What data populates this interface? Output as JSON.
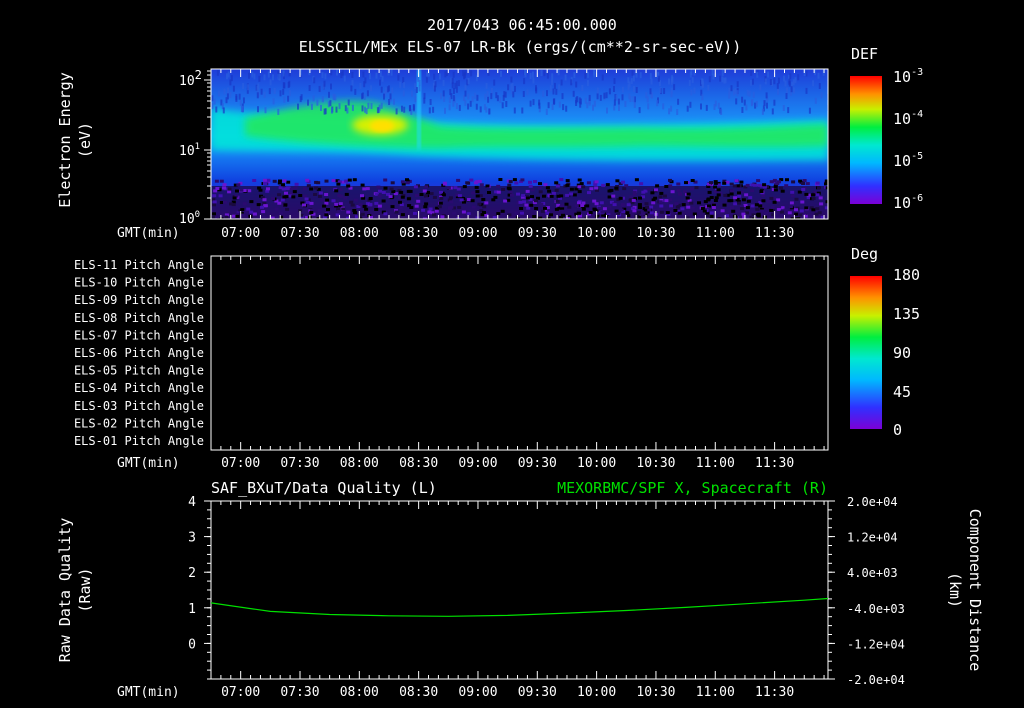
{
  "header": {
    "title": "2017/043 06:45:00.000",
    "subtitle": "ELSSCIL/MEx ELS-07 LR-Bk  (ergs/(cm**2-sr-sec-eV))"
  },
  "time_axis": {
    "label": "GMT(min)",
    "ticks": [
      "07:00",
      "07:30",
      "08:00",
      "08:30",
      "09:00",
      "09:30",
      "10:00",
      "10:30",
      "11:00",
      "11:30"
    ]
  },
  "colors": {
    "background": "#000000",
    "axes": "#ffffff",
    "line_series": "#00e000"
  },
  "chart_data": [
    {
      "type": "heatmap",
      "ylabel": "Electron Energy (eV)",
      "ylabel_line1": "Electron Energy",
      "ylabel_line2": "(eV)",
      "yscale": "log",
      "ylim": [
        1,
        150
      ],
      "ytick_bases": [
        "10",
        "10",
        "10"
      ],
      "ytick_exps": [
        "0",
        "1",
        "2"
      ],
      "colorbar": {
        "label": "DEF",
        "scale": "log",
        "range": [
          1e-06,
          0.001
        ],
        "tick_bases": [
          "10",
          "10",
          "10",
          "10"
        ],
        "tick_exps": [
          "-3",
          "-4",
          "-5",
          "-6"
        ]
      },
      "description_values": {
        "x_range_min": [
          "06:45",
          "11:57"
        ],
        "peak_energy_eV": 20,
        "peak_time": "08:20"
      }
    },
    {
      "type": "heatmap",
      "rows": [
        "ELS-11 Pitch Angle",
        "ELS-10 Pitch Angle",
        "ELS-09 Pitch Angle",
        "ELS-08 Pitch Angle",
        "ELS-07 Pitch Angle",
        "ELS-06 Pitch Angle",
        "ELS-05 Pitch Angle",
        "ELS-04 Pitch Angle",
        "ELS-03 Pitch Angle",
        "ELS-02 Pitch Angle",
        "ELS-01 Pitch Angle"
      ],
      "colorbar": {
        "label": "Deg",
        "range": [
          0,
          180
        ],
        "ticks": [
          "180",
          "135",
          "90",
          "45",
          "0"
        ]
      }
    },
    {
      "type": "line",
      "title_left": "SAF_BXuT/Data Quality (L)",
      "title_right": "MEXORBMC/SPF X, Spacecraft (R)",
      "ylabel_left_line1": "Raw Data Quality",
      "ylabel_left_line2": "(Raw)",
      "ylabel_right_line1": "Component Distance",
      "ylabel_right_line2": "(km)",
      "ylim_left": [
        -1,
        4
      ],
      "yticks_left": [
        "4",
        "3",
        "2",
        "1",
        "0"
      ],
      "ylim_right": [
        -20000,
        20000
      ],
      "yticks_right": [
        "2.0e+04",
        "1.2e+04",
        "4.0e+03",
        "-4.0e+03",
        "-1.2e+04",
        "-2.0e+04"
      ],
      "series": [
        {
          "name": "MEXORBMC/SPF X, Spacecraft (R)",
          "x_min": [
            0,
            30,
            60,
            90,
            120,
            150,
            180,
            210,
            240,
            270,
            300,
            312
          ],
          "y_km": [
            -2900,
            -4800,
            -5500,
            -5800,
            -5900,
            -5700,
            -5200,
            -4600,
            -3900,
            -3100,
            -2300,
            -1900
          ]
        }
      ]
    }
  ]
}
